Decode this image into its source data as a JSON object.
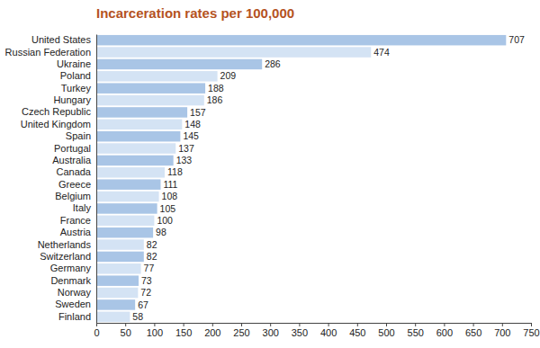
{
  "chart_data": {
    "type": "bar",
    "orientation": "horizontal",
    "title": "Incarceration rates per 100,000",
    "categories": [
      "United States",
      "Russian Federation",
      "Ukraine",
      "Poland",
      "Turkey",
      "Hungary",
      "Czech Republic",
      "United Kingdom",
      "Spain",
      "Portugal",
      "Australia",
      "Canada",
      "Greece",
      "Belgium",
      "Italy",
      "France",
      "Austria",
      "Netherlands",
      "Switzerland",
      "Germany",
      "Denmark",
      "Norway",
      "Sweden",
      "Finland"
    ],
    "values": [
      707,
      474,
      286,
      209,
      188,
      186,
      157,
      148,
      145,
      137,
      133,
      118,
      111,
      108,
      105,
      100,
      98,
      82,
      82,
      77,
      73,
      72,
      67,
      58
    ],
    "colors": [
      "#a9c5e6",
      "#d4e3f4",
      "#a9c5e6",
      "#d4e3f4",
      "#a9c5e6",
      "#d4e3f4",
      "#a9c5e6",
      "#d4e3f4",
      "#a9c5e6",
      "#d4e3f4",
      "#a9c5e6",
      "#d4e3f4",
      "#a9c5e6",
      "#d4e3f4",
      "#a9c5e6",
      "#d4e3f4",
      "#a9c5e6",
      "#d4e3f4",
      "#a9c5e6",
      "#d4e3f4",
      "#a9c5e6",
      "#d4e3f4",
      "#a9c5e6",
      "#d4e3f4"
    ],
    "xlim": [
      0,
      750
    ],
    "xticks": [
      0,
      50,
      100,
      150,
      200,
      250,
      300,
      350,
      400,
      450,
      500,
      550,
      600,
      650,
      700,
      750
    ],
    "grid": false,
    "data_labels": true
  }
}
